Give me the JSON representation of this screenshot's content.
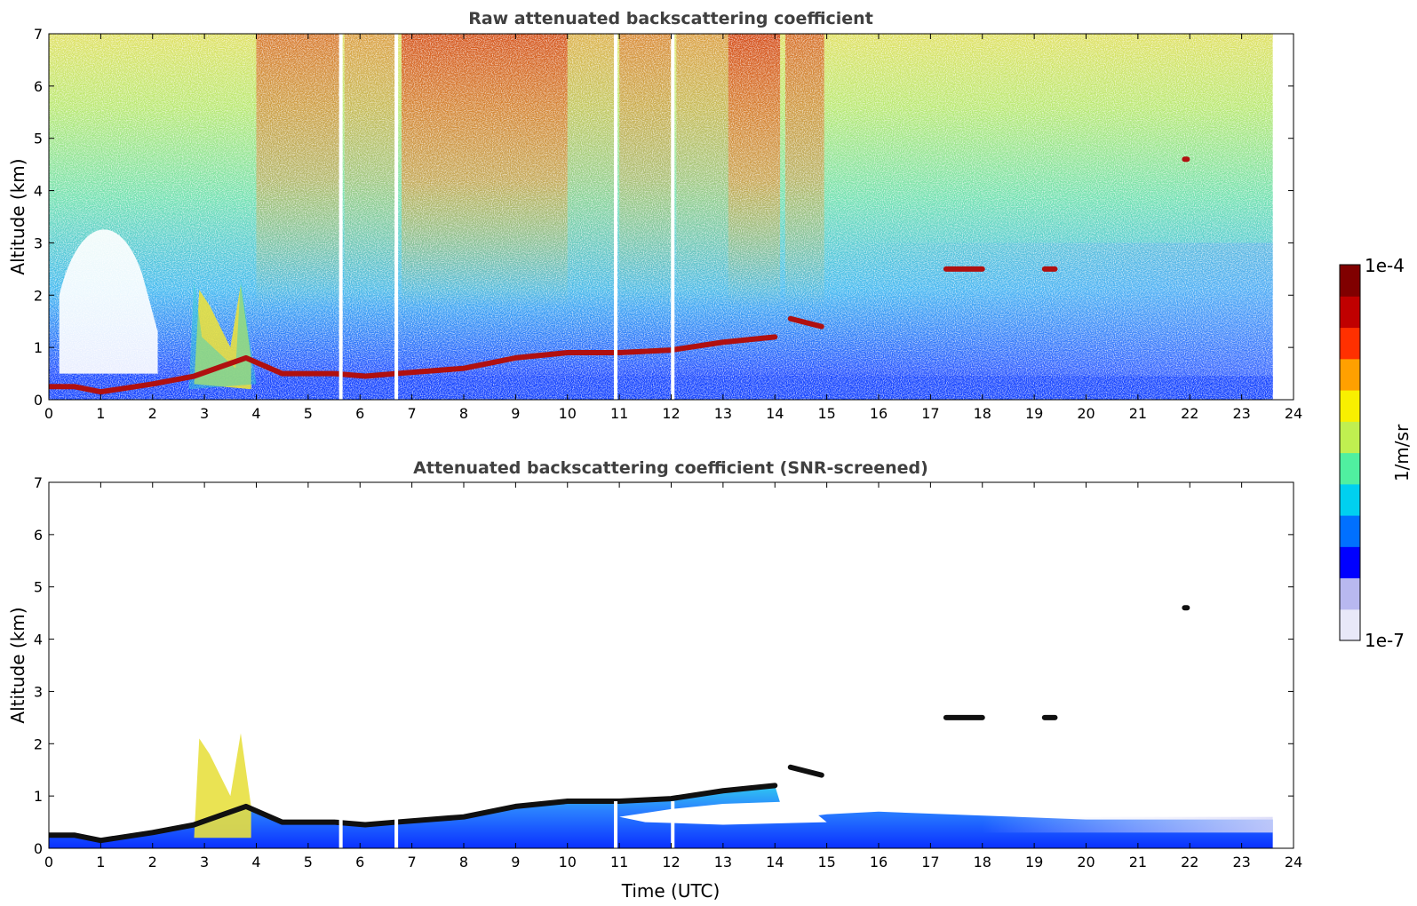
{
  "chart_data": [
    {
      "type": "heatmap",
      "title": "Raw attenuated backscattering coefficient",
      "xlabel": "",
      "ylabel": "Altitude (km)",
      "xlim": [
        0,
        24
      ],
      "ylim": [
        0,
        7
      ],
      "xticks": [
        "0",
        "1",
        "2",
        "3",
        "4",
        "5",
        "6",
        "7",
        "8",
        "9",
        "10",
        "11",
        "12",
        "13",
        "14",
        "15",
        "16",
        "17",
        "18",
        "19",
        "20",
        "21",
        "22",
        "23",
        "24"
      ],
      "yticks": [
        "0",
        "1",
        "2",
        "3",
        "4",
        "5",
        "6",
        "7"
      ],
      "data_end_hour": 23.6,
      "gaps_hours": [
        5.63,
        6.7,
        10.93,
        12.03
      ],
      "features": [
        {
          "name": "boundary layer top",
          "time": [
            0,
            0.5,
            1,
            2,
            2.8,
            3.8,
            4.5,
            5.5,
            6.1,
            6.7,
            8,
            9,
            10,
            11,
            12,
            13,
            14
          ],
          "altitude_km": [
            0.25,
            0.25,
            0.15,
            0.3,
            0.45,
            0.8,
            0.5,
            0.5,
            0.45,
            0.5,
            0.6,
            0.8,
            0.9,
            0.9,
            0.95,
            1.1,
            1.2
          ]
        },
        {
          "name": "elevated layer",
          "time": [
            14.3,
            14.9
          ],
          "altitude_km": [
            1.55,
            1.4
          ]
        },
        {
          "name": "cloud",
          "time": [
            17.3,
            18.0
          ],
          "altitude_km": [
            2.5,
            2.5
          ]
        },
        {
          "name": "cloud",
          "time": [
            19.2,
            19.4
          ],
          "altitude_km": [
            2.5,
            2.5
          ]
        },
        {
          "name": "cloud",
          "time": [
            21.9,
            21.95
          ],
          "altitude_km": [
            4.6,
            4.6
          ]
        }
      ]
    },
    {
      "type": "heatmap",
      "title": "Attenuated backscattering coefficient (SNR-screened)",
      "xlabel": "Time (UTC)",
      "ylabel": "Altitude (km)",
      "xlim": [
        0,
        24
      ],
      "ylim": [
        0,
        7
      ],
      "xticks": [
        "0",
        "1",
        "2",
        "3",
        "4",
        "5",
        "6",
        "7",
        "8",
        "9",
        "10",
        "11",
        "12",
        "13",
        "14",
        "15",
        "16",
        "17",
        "18",
        "19",
        "20",
        "21",
        "22",
        "23",
        "24"
      ],
      "yticks": [
        "0",
        "1",
        "2",
        "3",
        "4",
        "5",
        "6",
        "7"
      ]
    }
  ],
  "colorbar": {
    "label": "1/m/sr",
    "max_label": "1e-4",
    "min_label": "1e-7",
    "scale": "log",
    "range": [
      1e-07,
      0.0001
    ],
    "colormap": [
      "#e8e8f8",
      "#b8b8f0",
      "#0000ff",
      "#0070ff",
      "#00d0f0",
      "#50f0a0",
      "#c0f050",
      "#f8f000",
      "#ffa000",
      "#ff3000",
      "#c00000",
      "#800000"
    ]
  }
}
